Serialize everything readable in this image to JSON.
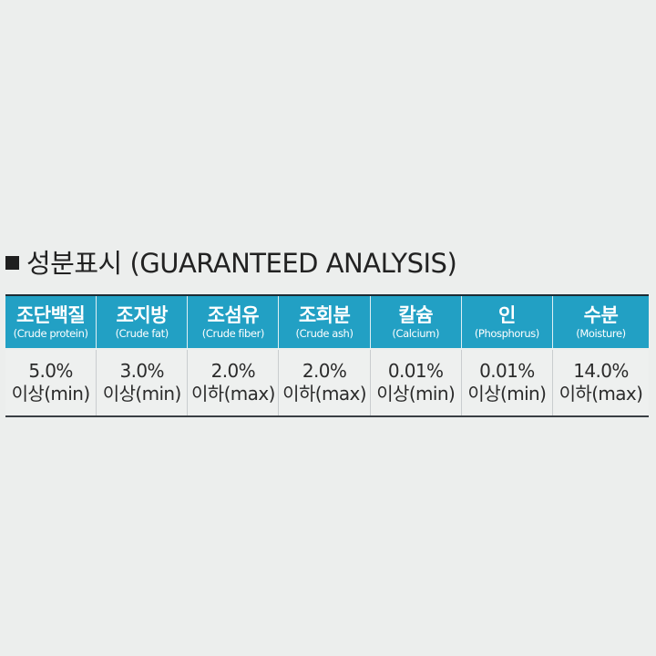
{
  "title": "성분표시 (GUARANTEED ANALYSIS)",
  "columns": [
    {
      "ko": "조단백질",
      "en": "(Crude protein)",
      "value": "5.0%",
      "bound": "이상(min)"
    },
    {
      "ko": "조지방",
      "en": "(Crude fat)",
      "value": "3.0%",
      "bound": "이상(min)"
    },
    {
      "ko": "조섬유",
      "en": "(Crude fiber)",
      "value": "2.0%",
      "bound": "이하(max)"
    },
    {
      "ko": "조회분",
      "en": "(Crude ash)",
      "value": "2.0%",
      "bound": "이하(max)"
    },
    {
      "ko": "칼슘",
      "en": "(Calcium)",
      "value": "0.01%",
      "bound": "이상(min)"
    },
    {
      "ko": "인",
      "en": "(Phosphorus)",
      "value": "0.01%",
      "bound": "이상(min)"
    },
    {
      "ko": "수분",
      "en": "(Moisture)",
      "value": "14.0%",
      "bound": "이하(max)"
    }
  ],
  "colors": {
    "header_bg": "#22a0c4",
    "header_text": "#ffffff",
    "body_bg": "#eceeed"
  }
}
